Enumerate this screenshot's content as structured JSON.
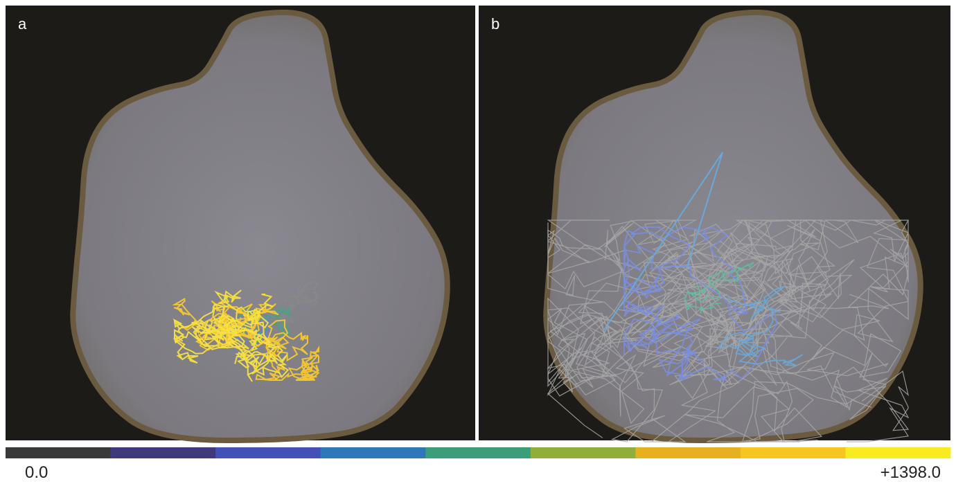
{
  "panels": [
    {
      "label": "a"
    },
    {
      "label": "b"
    }
  ],
  "colorbar": {
    "colors": [
      "#3a3a3a",
      "#3f3a7e",
      "#4250b8",
      "#2c78b8",
      "#3a9e7a",
      "#8fae3a",
      "#e6b020",
      "#f7c520",
      "#f8ec20"
    ],
    "min_label": "0.0",
    "max_label": "+1398.0"
  }
}
